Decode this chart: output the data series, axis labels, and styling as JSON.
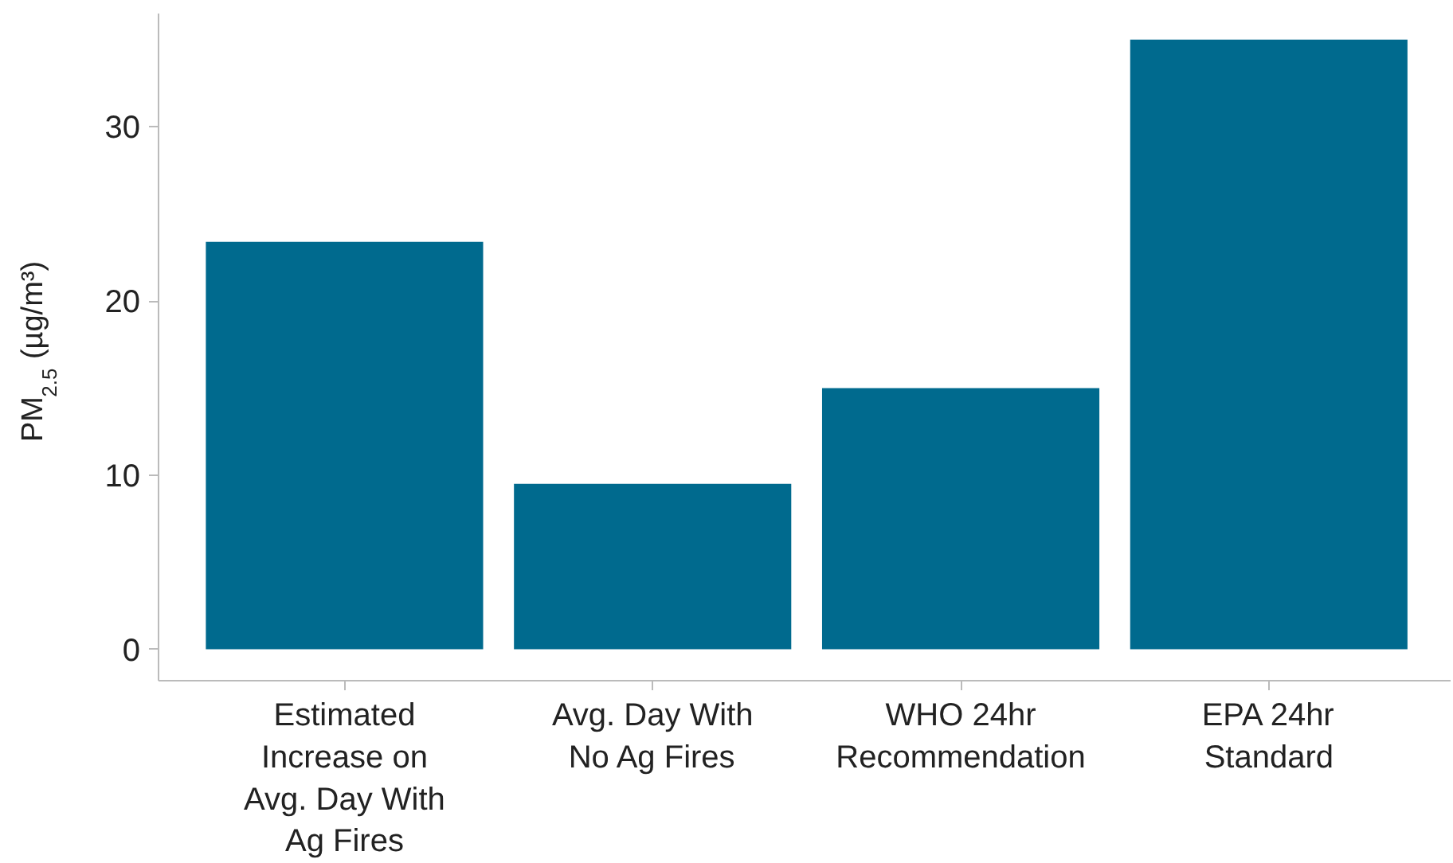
{
  "chart_data": {
    "type": "bar",
    "ylabel": "PM$_{2.5}$ (µg/m³)",
    "categories": [
      "Estimated Increase on Avg. Day With Ag Fires",
      "Avg. Day With No Ag Fires",
      "WHO 24hr Recommendation",
      "EPA 24hr Standard"
    ],
    "values": [
      23.4,
      9.5,
      15,
      35
    ],
    "color": "#006a8e",
    "ylim": [
      -1.8,
      36.5
    ],
    "yticks": [
      0,
      10,
      20,
      30
    ],
    "grid": false
  }
}
